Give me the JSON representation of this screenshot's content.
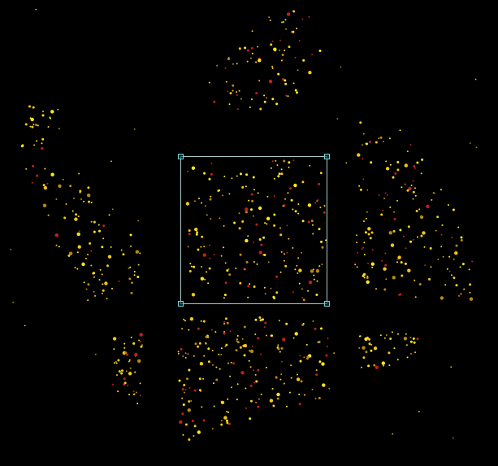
{
  "image": {
    "background_color": "#000000",
    "dot_colors": {
      "primary": "#ffe81e",
      "secondary": "#f5c915",
      "dim": "#b88a10",
      "red": "#c02020"
    },
    "dot_clusters": [
      {
        "name": "top-center-cluster",
        "count": 85
      },
      {
        "name": "left-upper-cluster",
        "count": 25
      },
      {
        "name": "left-middle-cluster",
        "count": 95
      },
      {
        "name": "center-selected-cluster",
        "count": 190
      },
      {
        "name": "right-middle-cluster",
        "count": 160
      },
      {
        "name": "bottom-left-cluster",
        "count": 45
      },
      {
        "name": "bottom-center-cluster",
        "count": 200
      },
      {
        "name": "bottom-right-cluster",
        "count": 40
      }
    ]
  },
  "selection": {
    "border_color": "#a8c8c8",
    "handle_color": "#7fd0d0",
    "handles": [
      "top-left",
      "top-right",
      "bottom-left",
      "bottom-right"
    ]
  }
}
